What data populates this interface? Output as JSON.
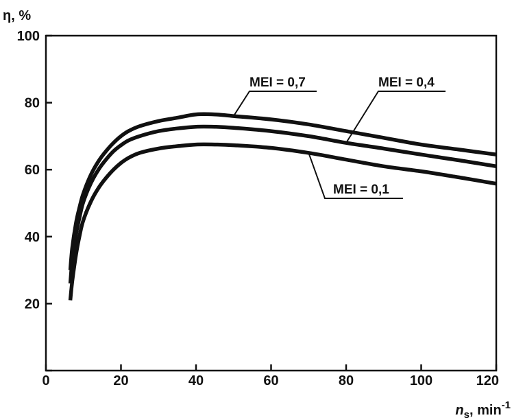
{
  "chart_data": {
    "type": "line",
    "title": "",
    "ylabel": "η, %",
    "xlabel": {
      "symbol": "n",
      "subscript": "s",
      "unit": ", min",
      "exponent": "-1"
    },
    "xlim": [
      0,
      120
    ],
    "ylim": [
      0,
      100
    ],
    "xticks": [
      0,
      20,
      40,
      60,
      80,
      100,
      120
    ],
    "yticks": [
      0,
      20,
      40,
      60,
      80,
      100
    ],
    "xtick_labels": [
      "0",
      "20",
      "40",
      "60",
      "80",
      "100",
      "120"
    ],
    "ytick_labels": [
      "",
      "20",
      "40",
      "60",
      "80",
      "100"
    ],
    "grid": false,
    "legend": "none",
    "series": [
      {
        "name": "MEI = 0,7",
        "x": [
          6.5,
          7,
          8,
          9,
          10,
          12,
          14,
          16,
          18,
          20,
          22,
          25,
          30,
          35,
          40,
          45,
          50,
          60,
          70,
          80,
          90,
          100,
          110,
          120
        ],
        "y": [
          30,
          36.5,
          44,
          49,
          53,
          58.5,
          62.5,
          65.5,
          68,
          70,
          71.5,
          73,
          74.5,
          75.5,
          76.5,
          76.5,
          76,
          75,
          73.5,
          71.5,
          69.5,
          67.5,
          66,
          64.5
        ]
      },
      {
        "name": "MEI = 0,4",
        "x": [
          6.5,
          7,
          8,
          9,
          10,
          12,
          14,
          16,
          18,
          20,
          22,
          25,
          30,
          35,
          40,
          45,
          50,
          60,
          70,
          80,
          90,
          100,
          110,
          120
        ],
        "y": [
          26,
          32.5,
          40.5,
          46,
          50.5,
          56,
          60,
          63,
          65.5,
          67.3,
          68.7,
          70,
          71.5,
          72.3,
          72.8,
          72.8,
          72.5,
          71.5,
          70,
          68,
          66.3,
          64.5,
          62.8,
          61
        ]
      },
      {
        "name": "MEI = 0,1",
        "x": [
          6.5,
          7,
          8,
          9,
          10,
          12,
          14,
          16,
          18,
          20,
          22,
          25,
          30,
          35,
          40,
          45,
          50,
          60,
          70,
          80,
          90,
          100,
          110,
          120
        ],
        "y": [
          21,
          26.5,
          34.5,
          40.5,
          45,
          50.5,
          54.5,
          57.5,
          60,
          62,
          63.5,
          65,
          66.3,
          67,
          67.5,
          67.5,
          67.3,
          66.5,
          65,
          63,
          61,
          59.5,
          57.7,
          55.8
        ]
      }
    ],
    "annotations": [
      {
        "text": "MEI = 0,7",
        "series": "MEI = 0,7",
        "points_to": [
          50,
          76
        ]
      },
      {
        "text": "MEI = 0,4",
        "series": "MEI = 0,4",
        "points_to": [
          80,
          68
        ]
      },
      {
        "text": "MEI = 0,1",
        "series": "MEI = 0,1",
        "points_to": [
          70,
          65
        ]
      }
    ]
  }
}
